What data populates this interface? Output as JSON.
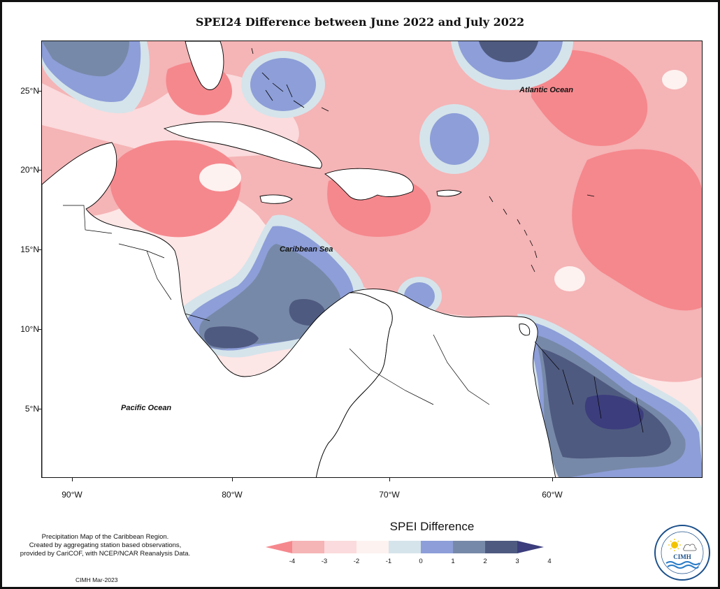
{
  "title": "SPEI24 Difference between June 2022 and July 2022",
  "map": {
    "lat_labels": [
      "25°N",
      "20°N",
      "15°N",
      "10°N",
      "5°N"
    ],
    "lon_labels": [
      "90°W",
      "80°W",
      "70°W",
      "60°W"
    ],
    "regions": [
      {
        "name": "Atlantic Ocean"
      },
      {
        "name": "Caribbean Sea"
      },
      {
        "name": "Pacific Ocean"
      }
    ]
  },
  "legend": {
    "title": "SPEI Difference",
    "ticks": [
      "-4",
      "-3",
      "-2",
      "-1",
      "0",
      "1",
      "2",
      "3",
      "4"
    ],
    "colors": [
      "#f5888d",
      "#f5b4b6",
      "#fbdbdd",
      "#fdf2f0",
      "#d5e4ea",
      "#8d9ed8",
      "#7789a8",
      "#4f5a80",
      "#3b3d7c"
    ]
  },
  "credits": {
    "line1": "Precipitation Map of the Caribbean Region.",
    "line2": "Created by aggregating station based observations,",
    "line3": "provided by CariCOF, with NCEP/NCAR Reanalysis Data.",
    "date": "CIMH Mar-2023"
  },
  "logo": {
    "text": "CIMH",
    "icon": "cimh-logo-icon"
  }
}
